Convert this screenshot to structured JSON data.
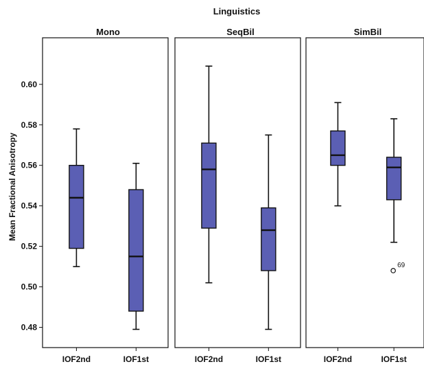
{
  "chart_data": {
    "type": "boxplot",
    "title": "Linguistics",
    "ylabel": "Mean Fractional Anisotropy",
    "xlabel": "",
    "ylim": [
      0.47,
      0.623
    ],
    "yticks": [
      0.48,
      0.5,
      0.52,
      0.54,
      0.56,
      0.58,
      0.6
    ],
    "ytick_labels": [
      "0.48",
      "0.50",
      "0.52",
      "0.54",
      "0.56",
      "0.58",
      "0.60"
    ],
    "box_color": "#5b5fb4",
    "panels": [
      {
        "name": "Mono",
        "groups": [
          {
            "category": "IOF2nd",
            "min": 0.51,
            "q1": 0.519,
            "median": 0.544,
            "q3": 0.56,
            "max": 0.578,
            "outliers": []
          },
          {
            "category": "IOF1st",
            "min": 0.479,
            "q1": 0.488,
            "median": 0.515,
            "q3": 0.548,
            "max": 0.561,
            "outliers": []
          }
        ]
      },
      {
        "name": "SeqBil",
        "groups": [
          {
            "category": "IOF2nd",
            "min": 0.502,
            "q1": 0.529,
            "median": 0.558,
            "q3": 0.571,
            "max": 0.609,
            "outliers": []
          },
          {
            "category": "IOF1st",
            "min": 0.479,
            "q1": 0.508,
            "median": 0.528,
            "q3": 0.539,
            "max": 0.575,
            "outliers": []
          }
        ]
      },
      {
        "name": "SimBil",
        "groups": [
          {
            "category": "IOF2nd",
            "min": 0.54,
            "q1": 0.56,
            "median": 0.565,
            "q3": 0.577,
            "max": 0.591,
            "outliers": []
          },
          {
            "category": "IOF1st",
            "min": 0.522,
            "q1": 0.543,
            "median": 0.559,
            "q3": 0.564,
            "max": 0.583,
            "outliers": [
              {
                "value": 0.508,
                "label": "69"
              }
            ]
          }
        ]
      }
    ]
  }
}
